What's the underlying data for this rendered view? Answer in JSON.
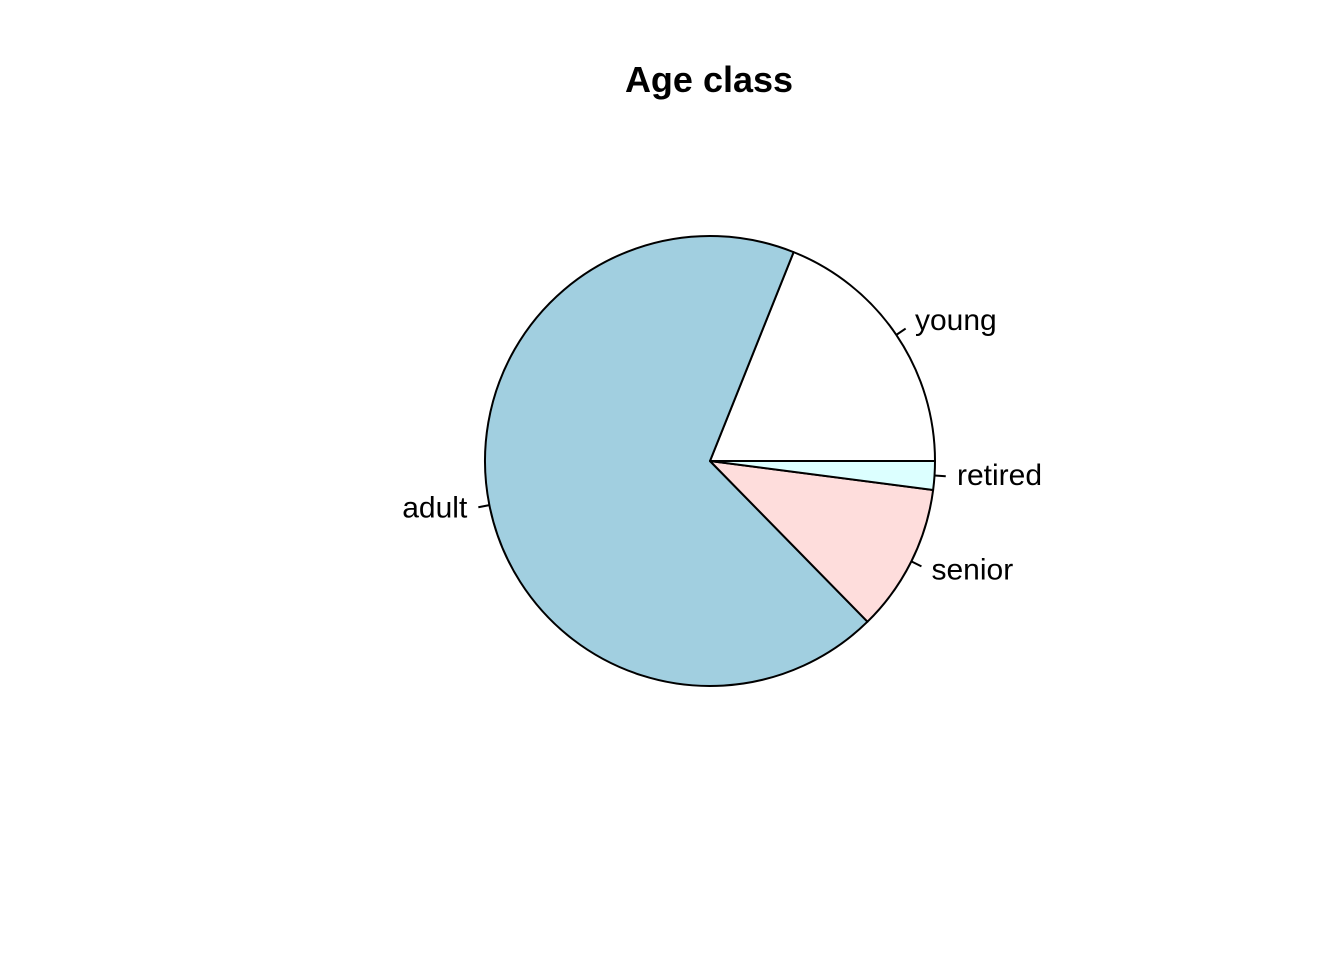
{
  "chart_data": {
    "type": "pie",
    "title": "Age class",
    "start_angle_deg": 0,
    "direction": "counterclockwise",
    "slices": [
      {
        "label": "young",
        "value": 17.5,
        "color": "#ffffff"
      },
      {
        "label": "adult",
        "value": 63.2,
        "color": "#a1cfe0"
      },
      {
        "label": "senior",
        "value": 9.8,
        "color": "#fedddc"
      },
      {
        "label": "retired",
        "value": 1.9,
        "color": "#dcffff"
      }
    ]
  }
}
